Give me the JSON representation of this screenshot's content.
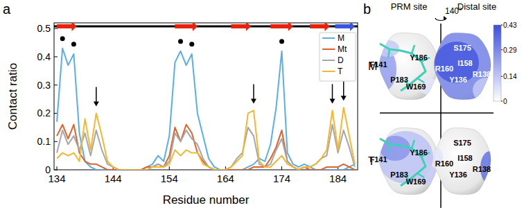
{
  "chart_data": {
    "type": "line",
    "panel_label": "a",
    "x_label": "Residue number",
    "y_label": "Contact ratio",
    "x": [
      134,
      135,
      136,
      137,
      138,
      139,
      140,
      141,
      142,
      143,
      144,
      145,
      146,
      147,
      148,
      149,
      150,
      151,
      152,
      153,
      154,
      155,
      156,
      157,
      158,
      159,
      160,
      161,
      162,
      163,
      164,
      165,
      166,
      167,
      168,
      169,
      170,
      171,
      172,
      173,
      174,
      175,
      176,
      177,
      178,
      179,
      180,
      181,
      182,
      183,
      184,
      185,
      186,
      187
    ],
    "series": [
      {
        "name": "M",
        "color": "#5aaee8",
        "values": [
          0.17,
          0.43,
          0.37,
          0.41,
          0.13,
          0.03,
          0.01,
          0.0,
          0.0,
          0.0,
          0.0,
          0.0,
          0.0,
          0.0,
          0.0,
          0.0,
          0.01,
          0.02,
          0.05,
          0.03,
          0.12,
          0.38,
          0.42,
          0.37,
          0.41,
          0.2,
          0.12,
          0.04,
          0.01,
          0.0,
          0.0,
          0.0,
          0.0,
          0.0,
          0.01,
          0.02,
          0.04,
          0.03,
          0.09,
          0.22,
          0.42,
          0.06,
          0.02,
          0.01,
          0.02,
          0.01,
          0.0,
          0.0,
          0.0,
          0.0,
          0.0,
          0.0,
          0.01,
          0.02
        ]
      },
      {
        "name": "Mt",
        "color": "#e0622a",
        "values": [
          0.12,
          0.16,
          0.11,
          0.16,
          0.06,
          0.03,
          0.02,
          0.02,
          0.01,
          0.0,
          0.0,
          0.0,
          0.0,
          0.0,
          0.0,
          0.0,
          0.01,
          0.01,
          0.02,
          0.01,
          0.05,
          0.15,
          0.1,
          0.16,
          0.13,
          0.06,
          0.03,
          0.01,
          0.0,
          0.0,
          0.0,
          0.0,
          0.0,
          0.0,
          0.0,
          0.01,
          0.01,
          0.01,
          0.04,
          0.08,
          0.14,
          0.03,
          0.01,
          0.0,
          0.01,
          0.0,
          0.0,
          0.0,
          0.01,
          0.01,
          0.01,
          0.02,
          0.01,
          0.0
        ]
      },
      {
        "name": "D",
        "color": "#a6a6a6",
        "values": [
          0.06,
          0.14,
          0.09,
          0.12,
          0.07,
          0.13,
          0.05,
          0.14,
          0.07,
          0.02,
          0.01,
          0.0,
          0.0,
          0.0,
          0.0,
          0.0,
          0.0,
          0.01,
          0.02,
          0.01,
          0.03,
          0.13,
          0.1,
          0.14,
          0.11,
          0.09,
          0.04,
          0.01,
          0.0,
          0.0,
          0.0,
          0.01,
          0.04,
          0.06,
          0.15,
          0.12,
          0.02,
          0.01,
          0.02,
          0.07,
          0.11,
          0.03,
          0.01,
          0.0,
          0.01,
          0.01,
          0.02,
          0.04,
          0.05,
          0.16,
          0.06,
          0.14,
          0.08,
          0.01
        ]
      },
      {
        "name": "T",
        "color": "#f5b731",
        "values": [
          0.04,
          0.06,
          0.05,
          0.06,
          0.03,
          0.18,
          0.07,
          0.2,
          0.12,
          0.03,
          0.01,
          0.0,
          0.0,
          0.0,
          0.0,
          0.0,
          0.0,
          0.01,
          0.01,
          0.01,
          0.02,
          0.07,
          0.05,
          0.07,
          0.06,
          0.06,
          0.02,
          0.01,
          0.0,
          0.0,
          0.0,
          0.01,
          0.03,
          0.05,
          0.2,
          0.21,
          0.03,
          0.01,
          0.01,
          0.03,
          0.05,
          0.02,
          0.01,
          0.0,
          0.01,
          0.01,
          0.02,
          0.04,
          0.07,
          0.21,
          0.07,
          0.22,
          0.12,
          0.02
        ]
      }
    ],
    "xlim": [
      133.5,
      187.5
    ],
    "xticks": [
      134,
      144,
      154,
      164,
      174,
      184
    ],
    "ylim": [
      0,
      0.52
    ],
    "yticks": [
      0,
      0.1,
      0.2,
      0.3,
      0.4,
      0.5
    ],
    "grid": false,
    "legend": "upper right",
    "secondary_structure": [
      {
        "start": 134,
        "end": 137.5,
        "color": "#e8220e"
      },
      {
        "start": 155,
        "end": 159,
        "color": "#e8220e"
      },
      {
        "start": 165,
        "end": 168.5,
        "color": "#e8220e"
      },
      {
        "start": 172,
        "end": 176,
        "color": "#e8220e"
      },
      {
        "start": 179,
        "end": 182.5,
        "color": "#e8220e"
      },
      {
        "start": 183.5,
        "end": 187,
        "color": "#3c55e0"
      }
    ],
    "annotations": {
      "dots": [
        135,
        137,
        156,
        158,
        174
      ],
      "arrows": [
        141,
        169,
        183,
        185
      ]
    }
  },
  "panel_b": {
    "panel_label": "b",
    "columns": [
      "PRM site",
      "Distal site"
    ],
    "rotation": "140°",
    "rows": [
      {
        "name": "M",
        "prm_labels": [
          "F141",
          "Y186",
          "P183",
          "W169"
        ],
        "distal_labels": [
          "S175",
          "I158",
          "R160",
          "Y136",
          "R138"
        ]
      },
      {
        "name": "T",
        "prm_labels": [
          "F141",
          "Y186",
          "P183",
          "W169"
        ],
        "distal_labels": [
          "S175",
          "I158",
          "R160",
          "Y136",
          "R138"
        ]
      }
    ],
    "colorbar": {
      "range": [
        0,
        0.43
      ],
      "ticks": [
        0,
        0.14,
        0.29,
        0.43
      ]
    }
  }
}
